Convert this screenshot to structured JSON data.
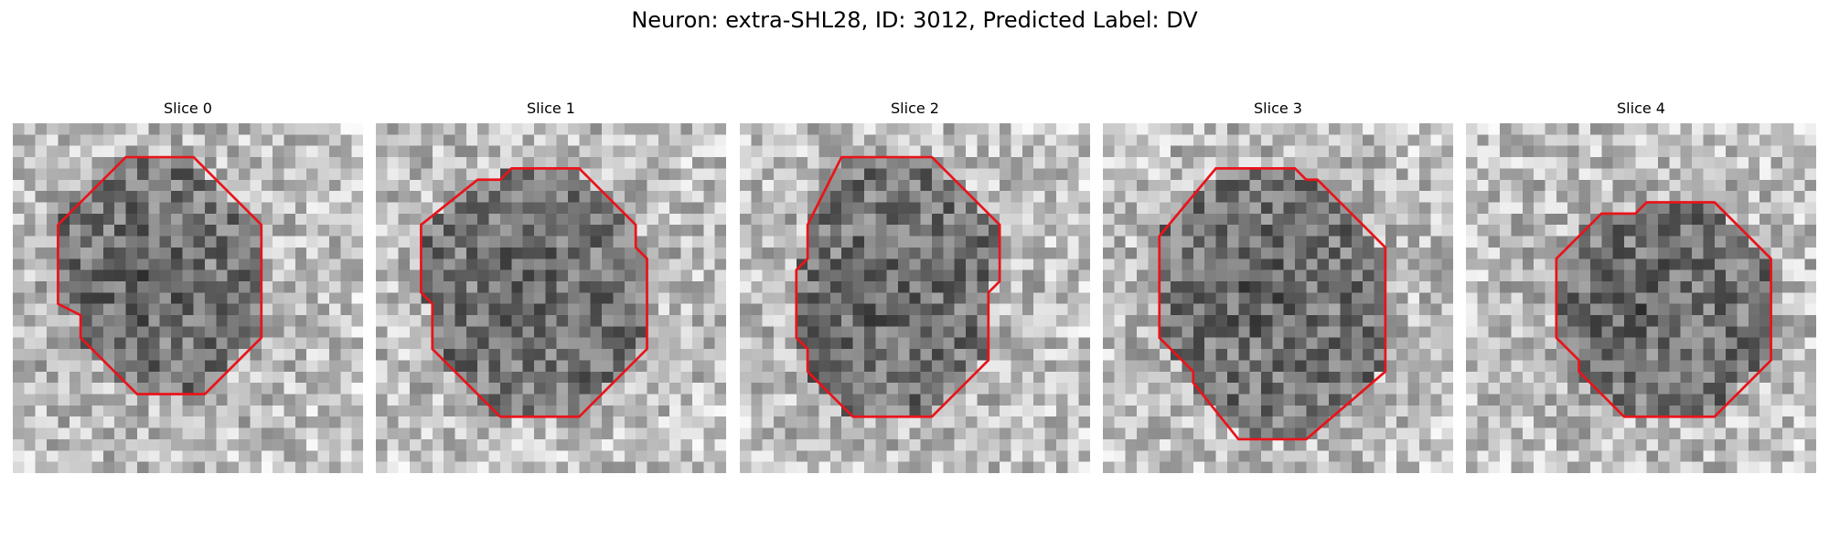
{
  "figure": {
    "title": "Neuron: extra-SHL28, ID: 3012, Predicted Label: DV"
  },
  "image_grid": {
    "columns": 31,
    "rows": 31
  },
  "contour_color": "#e8141a",
  "slices": [
    {
      "title": "Slice 0",
      "contour": [
        [
          10,
          3
        ],
        [
          16,
          3
        ],
        [
          22,
          9
        ],
        [
          22,
          19
        ],
        [
          17,
          24
        ],
        [
          11,
          24
        ],
        [
          6,
          19
        ],
        [
          6,
          17
        ],
        [
          4,
          16
        ],
        [
          4,
          9
        ]
      ]
    },
    {
      "title": "Slice 1",
      "contour": [
        [
          12,
          4
        ],
        [
          18,
          4
        ],
        [
          23,
          9
        ],
        [
          23,
          11
        ],
        [
          24,
          12
        ],
        [
          24,
          20
        ],
        [
          18,
          26
        ],
        [
          11,
          26
        ],
        [
          5,
          20
        ],
        [
          5,
          16
        ],
        [
          4,
          15
        ],
        [
          4,
          9
        ],
        [
          9,
          5
        ],
        [
          11,
          5
        ]
      ]
    },
    {
      "title": "Slice 2",
      "contour": [
        [
          9,
          3
        ],
        [
          17,
          3
        ],
        [
          23,
          9
        ],
        [
          23,
          14
        ],
        [
          22,
          15
        ],
        [
          22,
          21
        ],
        [
          17,
          26
        ],
        [
          10,
          26
        ],
        [
          6,
          22
        ],
        [
          6,
          20
        ],
        [
          5,
          19
        ],
        [
          5,
          13
        ],
        [
          6,
          12
        ],
        [
          6,
          9
        ]
      ]
    },
    {
      "title": "Slice 3",
      "contour": [
        [
          10,
          4
        ],
        [
          17,
          4
        ],
        [
          18,
          5
        ],
        [
          19,
          5
        ],
        [
          25,
          11
        ],
        [
          25,
          22
        ],
        [
          18,
          28
        ],
        [
          12,
          28
        ],
        [
          8,
          23
        ],
        [
          8,
          22
        ],
        [
          5,
          19
        ],
        [
          5,
          10
        ]
      ]
    },
    {
      "title": "Slice 4",
      "contour": [
        [
          12,
          8
        ],
        [
          15,
          8
        ],
        [
          16,
          7
        ],
        [
          22,
          7
        ],
        [
          27,
          12
        ],
        [
          27,
          21
        ],
        [
          22,
          26
        ],
        [
          14,
          26
        ],
        [
          10,
          22
        ],
        [
          10,
          21
        ],
        [
          8,
          19
        ],
        [
          8,
          12
        ]
      ]
    }
  ]
}
